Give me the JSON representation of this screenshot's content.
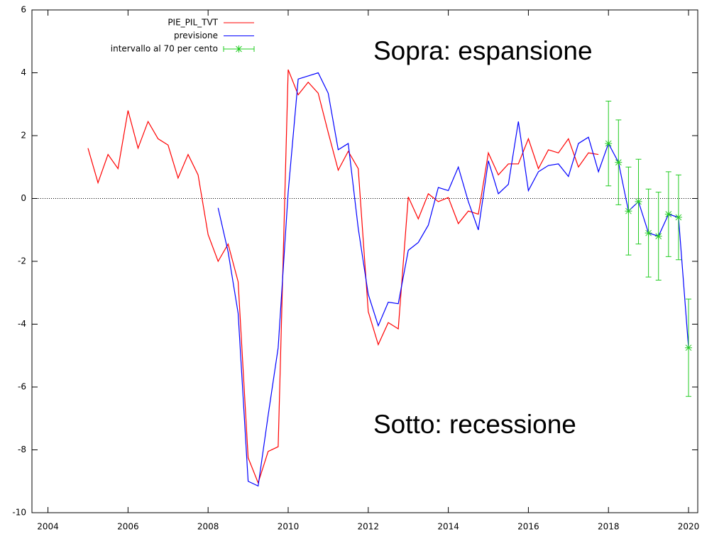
{
  "chart_data": {
    "type": "line",
    "annotations": [
      {
        "text": "Sopra: espansione",
        "color": "#22b14c"
      },
      {
        "text": "Sotto: recessione",
        "color": "#ee1111"
      }
    ],
    "xlim": [
      2003.6,
      2020.23
    ],
    "xticks": [
      2004,
      2006,
      2008,
      2010,
      2012,
      2014,
      2016,
      2018,
      2020
    ],
    "ylim": [
      -10,
      6
    ],
    "yticks": [
      -10,
      -8,
      -6,
      -4,
      -2,
      0,
      2,
      4,
      6
    ],
    "zero_line": true,
    "legend": "top-left",
    "series": [
      {
        "name": "PIE_PIL_TVT",
        "color": "#ff0000",
        "x": [
          2005,
          2005.25,
          2005.5,
          2005.75,
          2006,
          2006.25,
          2006.5,
          2006.75,
          2007,
          2007.25,
          2007.5,
          2007.75,
          2008,
          2008.25,
          2008.5,
          2008.75,
          2009,
          2009.25,
          2009.5,
          2009.75,
          2010,
          2010.25,
          2010.5,
          2010.75,
          2011,
          2011.25,
          2011.5,
          2011.75,
          2012,
          2012.25,
          2012.5,
          2012.75,
          2013,
          2013.25,
          2013.5,
          2013.75,
          2014,
          2014.25,
          2014.5,
          2014.75,
          2015,
          2015.25,
          2015.5,
          2015.75,
          2016,
          2016.25,
          2016.5,
          2016.75,
          2017,
          2017.25,
          2017.5,
          2017.75
        ],
        "values": [
          1.6,
          0.5,
          1.4,
          0.95,
          2.8,
          1.6,
          2.45,
          1.9,
          1.7,
          0.65,
          1.4,
          0.75,
          -1.15,
          -2.0,
          -1.45,
          -2.65,
          -8.25,
          -9.05,
          -8.05,
          -7.9,
          4.1,
          3.3,
          3.7,
          3.35,
          2.1,
          0.9,
          1.5,
          0.95,
          -3.6,
          -4.65,
          -3.95,
          -4.15,
          0.05,
          -0.65,
          0.15,
          -0.1,
          0.03,
          -0.8,
          -0.4,
          -0.5,
          1.45,
          0.75,
          1.1,
          1.1,
          1.9,
          0.95,
          1.55,
          1.45,
          1.9,
          1.0,
          1.45,
          1.4
        ]
      },
      {
        "name": "previsione",
        "color": "#0000ff",
        "x": [
          2008.25,
          2008.5,
          2008.75,
          2009,
          2009.25,
          2009.5,
          2009.75,
          2010,
          2010.25,
          2010.5,
          2010.75,
          2011,
          2011.25,
          2011.5,
          2011.75,
          2012,
          2012.25,
          2012.5,
          2012.75,
          2013,
          2013.25,
          2013.5,
          2013.75,
          2014,
          2014.25,
          2014.5,
          2014.75,
          2015,
          2015.25,
          2015.5,
          2015.75,
          2016,
          2016.25,
          2016.5,
          2016.75,
          2017,
          2017.25,
          2017.5,
          2017.75,
          2018,
          2018.25,
          2018.5,
          2018.75,
          2019,
          2019.25,
          2019.5,
          2019.75,
          2020
        ],
        "values": [
          -0.3,
          -1.7,
          -3.65,
          -9.0,
          -9.15,
          -6.9,
          -4.75,
          0.2,
          3.8,
          3.9,
          4.0,
          3.35,
          1.55,
          1.75,
          -0.95,
          -3.05,
          -4.05,
          -3.3,
          -3.35,
          -1.65,
          -1.4,
          -0.85,
          0.35,
          0.25,
          1.0,
          -0.1,
          -1.0,
          1.2,
          0.15,
          0.45,
          2.45,
          0.25,
          0.85,
          1.05,
          1.1,
          0.7,
          1.75,
          1.95,
          0.85,
          1.75,
          1.15,
          -0.4,
          -0.1,
          -1.1,
          -1.2,
          -0.5,
          -0.6,
          -4.75
        ]
      },
      {
        "name": "intervallo al 70 per cento",
        "color": "#22cc22",
        "kind": "errorbar",
        "x": [
          2018,
          2018.25,
          2018.5,
          2018.75,
          2019,
          2019.25,
          2019.5,
          2019.75,
          2020
        ],
        "values": [
          1.75,
          1.15,
          -0.4,
          -0.1,
          -1.1,
          -1.2,
          -0.5,
          -0.6,
          -4.75
        ],
        "error": [
          1.35,
          1.35,
          1.4,
          1.35,
          1.4,
          1.4,
          1.35,
          1.35,
          1.55
        ]
      }
    ]
  }
}
